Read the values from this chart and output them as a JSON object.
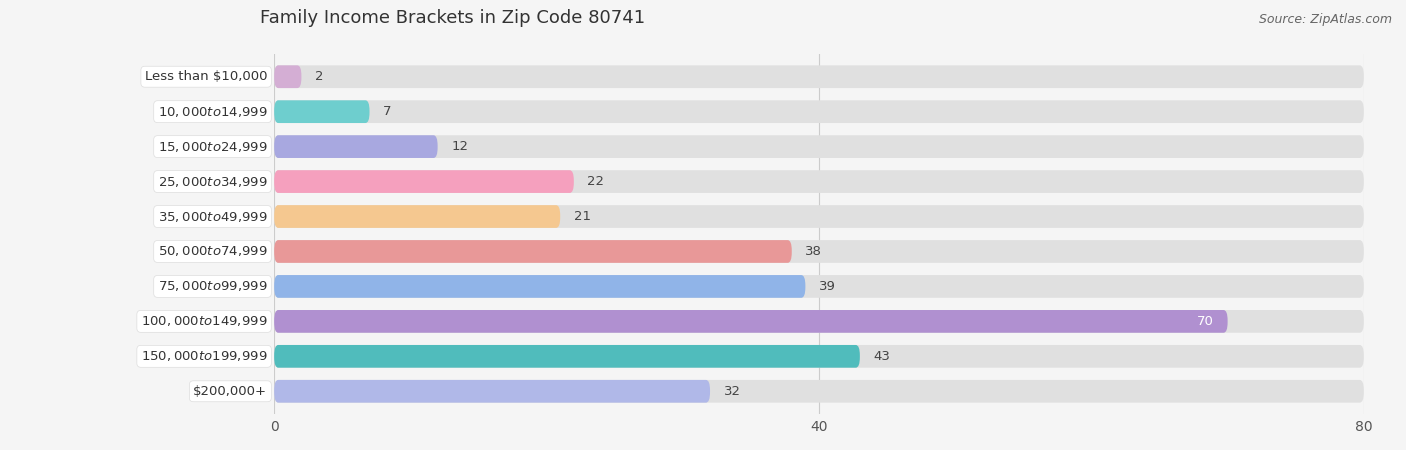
{
  "title": "Family Income Brackets in Zip Code 80741",
  "source": "Source: ZipAtlas.com",
  "categories": [
    "Less than $10,000",
    "$10,000 to $14,999",
    "$15,000 to $24,999",
    "$25,000 to $34,999",
    "$35,000 to $49,999",
    "$50,000 to $74,999",
    "$75,000 to $99,999",
    "$100,000 to $149,999",
    "$150,000 to $199,999",
    "$200,000+"
  ],
  "values": [
    2,
    7,
    12,
    22,
    21,
    38,
    39,
    70,
    43,
    32
  ],
  "bar_colors": [
    "#d4aed4",
    "#6ecece",
    "#a8a8e0",
    "#f5a0be",
    "#f5c890",
    "#e89898",
    "#90b4e8",
    "#b090d0",
    "#50bcbc",
    "#b0b8e8"
  ],
  "xlim": [
    0,
    80
  ],
  "xticks": [
    0,
    40,
    80
  ],
  "bg_color": "#f5f5f5",
  "bar_track_color": "#e0e0e0",
  "label_bg_color": "#ffffff",
  "title_fontsize": 13,
  "label_fontsize": 9.5,
  "value_fontsize": 9.5,
  "tick_fontsize": 10
}
